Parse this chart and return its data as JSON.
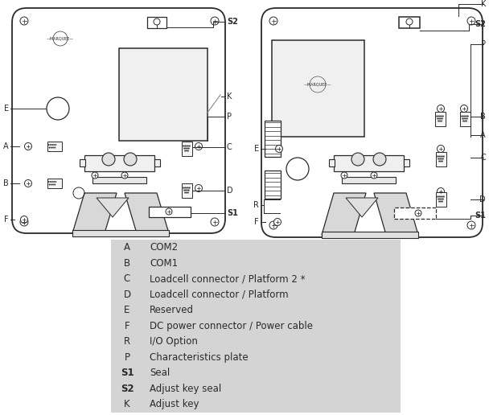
{
  "bg_color": "#ffffff",
  "legend_bg": "#d4d4d4",
  "line_color": "#2a2a2a",
  "label_fontsize": 7.0,
  "legend_fontsize": 8.5,
  "legend_items": [
    {
      "label": "A",
      "bold": false,
      "desc": "COM2"
    },
    {
      "label": "B",
      "bold": false,
      "desc": "COM1"
    },
    {
      "label": "C",
      "bold": false,
      "desc": "Loadcell connector / Platform 2 *"
    },
    {
      "label": "D",
      "bold": false,
      "desc": "Loadcell connector / Platform"
    },
    {
      "label": "E",
      "bold": false,
      "desc": "Reserved"
    },
    {
      "label": "F",
      "bold": false,
      "desc": "DC power connector / Power cable"
    },
    {
      "label": "R",
      "bold": false,
      "desc": "I/O Option"
    },
    {
      "label": "P",
      "bold": false,
      "desc": "Characteristics plate"
    },
    {
      "label": "S1",
      "bold": true,
      "desc": "Seal"
    },
    {
      "label": "S2",
      "bold": true,
      "desc": "Adjust key seal"
    },
    {
      "label": "K",
      "bold": false,
      "desc": "Adjust key"
    }
  ]
}
